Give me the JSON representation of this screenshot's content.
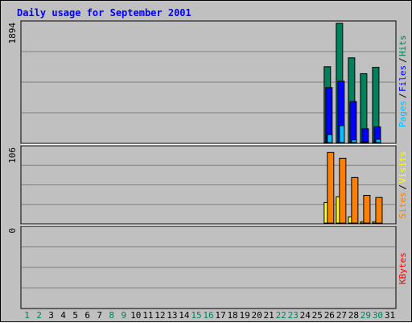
{
  "chart_data": {
    "type": "bar",
    "title": "Daily usage for September 2001",
    "categories": [
      "1",
      "2",
      "3",
      "4",
      "5",
      "6",
      "7",
      "8",
      "9",
      "10",
      "11",
      "12",
      "13",
      "14",
      "15",
      "16",
      "17",
      "18",
      "19",
      "20",
      "21",
      "22",
      "23",
      "24",
      "25",
      "26",
      "27",
      "28",
      "29",
      "30",
      "31"
    ],
    "weekend_days": [
      "1",
      "2",
      "8",
      "9",
      "15",
      "16",
      "22",
      "23",
      "29",
      "30"
    ],
    "panels": [
      {
        "name": "hits-files-pages",
        "max_label": "1894",
        "ylim": [
          0,
          1894
        ],
        "legend": [
          "Pages",
          "/",
          "Files",
          "/",
          "Hits"
        ],
        "series": [
          {
            "name": "Hits",
            "color": "#00805c",
            "values": [
              0,
              0,
              0,
              0,
              0,
              0,
              0,
              0,
              0,
              0,
              0,
              0,
              0,
              0,
              0,
              0,
              0,
              0,
              0,
              0,
              0,
              0,
              0,
              0,
              0,
              1210,
              1894,
              1350,
              1100,
              1200,
              0
            ]
          },
          {
            "name": "Files",
            "color": "#0000ff",
            "values": [
              0,
              0,
              0,
              0,
              0,
              0,
              0,
              0,
              0,
              0,
              0,
              0,
              0,
              0,
              0,
              0,
              0,
              0,
              0,
              0,
              0,
              0,
              0,
              0,
              0,
              880,
              980,
              660,
              230,
              260,
              0
            ]
          },
          {
            "name": "Pages",
            "color": "#00c0ff",
            "values": [
              0,
              0,
              0,
              0,
              0,
              0,
              0,
              0,
              0,
              0,
              0,
              0,
              0,
              0,
              0,
              0,
              0,
              0,
              0,
              0,
              0,
              0,
              0,
              0,
              0,
              140,
              280,
              55,
              25,
              65,
              0
            ]
          }
        ]
      },
      {
        "name": "sites-visits",
        "max_label": "106",
        "ylim": [
          0,
          106
        ],
        "legend": [
          "Sites",
          "/",
          "Visits"
        ],
        "series": [
          {
            "name": "Visits",
            "color": "#ffff00",
            "values": [
              0,
              0,
              0,
              0,
              0,
              0,
              0,
              0,
              0,
              0,
              0,
              0,
              0,
              0,
              0,
              0,
              0,
              0,
              0,
              0,
              0,
              0,
              0,
              0,
              0,
              30,
              38,
              10,
              3,
              3,
              0
            ]
          },
          {
            "name": "Sites",
            "color": "#ff8000",
            "values": [
              0,
              0,
              0,
              0,
              0,
              0,
              0,
              0,
              0,
              0,
              0,
              0,
              0,
              0,
              0,
              0,
              0,
              0,
              0,
              0,
              0,
              0,
              0,
              0,
              0,
              100,
              92,
              65,
              40,
              37,
              0
            ]
          }
        ]
      },
      {
        "name": "kbytes",
        "max_label": "0",
        "ylim": [
          0,
          1
        ],
        "legend": [
          "KBytes"
        ],
        "series": [
          {
            "name": "KBytes",
            "color": "#ff0000",
            "values": [
              0,
              0,
              0,
              0,
              0,
              0,
              0,
              0,
              0,
              0,
              0,
              0,
              0,
              0,
              0,
              0,
              0,
              0,
              0,
              0,
              0,
              0,
              0,
              0,
              0,
              0,
              0,
              0,
              0,
              0,
              0
            ]
          }
        ]
      }
    ],
    "grid": true
  },
  "colors": {
    "title": "#0000ff",
    "background": "#c0c0c0",
    "weekday_label": "#000000",
    "weekend_label": "#00805c",
    "grid": "#808080",
    "separator": "#ffffff",
    "slash": "#000000"
  }
}
